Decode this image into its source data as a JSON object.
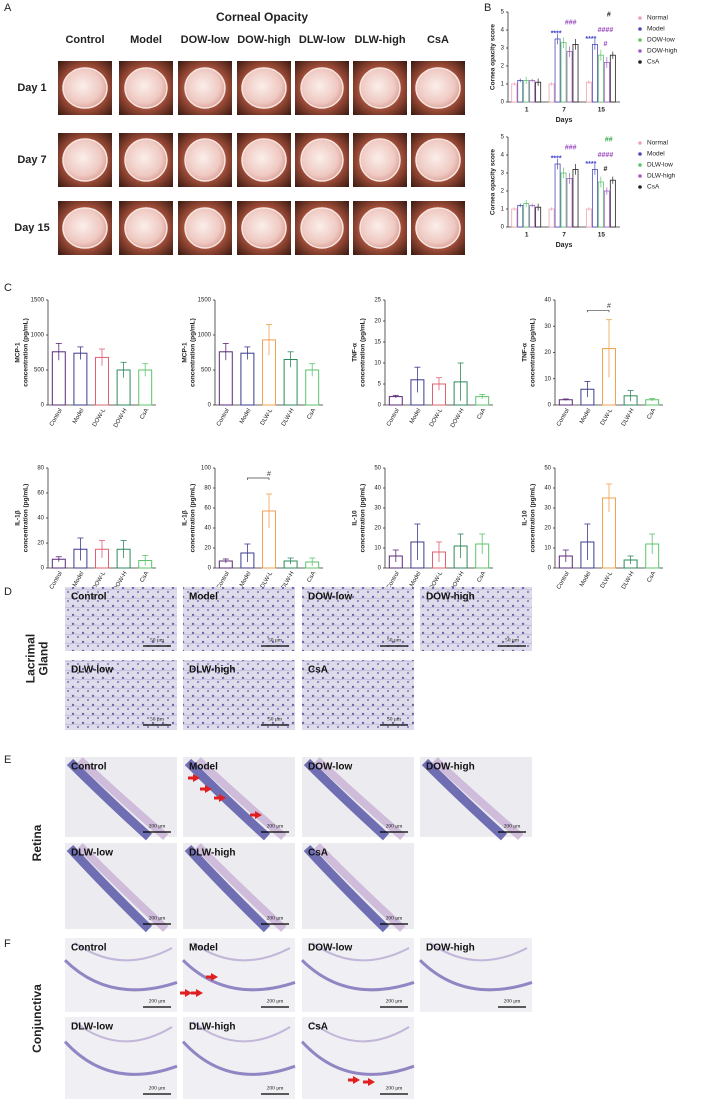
{
  "panel_labels": [
    "A",
    "B",
    "C",
    "D",
    "E",
    "F"
  ],
  "corneal_opacity": {
    "title": "Corneal Opacity",
    "groups": [
      "Control",
      "Model",
      "DOW-low",
      "DOW-high",
      "DLW-low",
      "DLW-high",
      "CsA"
    ],
    "days": [
      "Day 1",
      "Day 7",
      "Day 15"
    ]
  },
  "chart_data": [
    {
      "type": "bar",
      "ylabel": [
        "Cornea opacity score"
      ],
      "xlabel": "Days",
      "categories": [
        "1",
        "7",
        "15"
      ],
      "ylim": [
        0,
        5
      ],
      "yticks": [
        0,
        1,
        2,
        3,
        4,
        5
      ],
      "legend": "right",
      "series": [
        {
          "name": "Normal",
          "color": "#f2a3b0",
          "values": [
            1,
            1,
            1.1
          ],
          "errors": [
            0.1,
            0.1,
            0.1
          ]
        },
        {
          "name": "Model",
          "color": "#4b4bb5",
          "values": [
            1.2,
            3.5,
            3.2
          ],
          "errors": [
            0.1,
            0.3,
            0.3
          ]
        },
        {
          "name": "DOW-low",
          "color": "#5cc46b",
          "values": [
            1.2,
            3.3,
            2.6
          ],
          "errors": [
            0.2,
            0.3,
            0.3
          ]
        },
        {
          "name": "DOW-high",
          "color": "#a45cc8",
          "values": [
            1.2,
            2.8,
            2.2
          ],
          "errors": [
            0.1,
            0.3,
            0.3
          ]
        },
        {
          "name": "CsA",
          "color": "#222222",
          "values": [
            1.1,
            3.2,
            2.6
          ],
          "errors": [
            0.2,
            0.3,
            0.2
          ]
        }
      ],
      "annotations": [
        {
          "text": "****",
          "color": "#3a3ad0"
        },
        {
          "text": "###",
          "color": "#9a4cc0"
        },
        {
          "text": "****",
          "color": "#3a3ad0"
        },
        {
          "text": "#",
          "color": "#9a4cc0"
        },
        {
          "text": "####",
          "color": "#9a4cc0"
        },
        {
          "text": "#",
          "color": "#222222"
        }
      ]
    },
    {
      "type": "bar",
      "ylabel": [
        "Cornea opacity score"
      ],
      "xlabel": "Days",
      "categories": [
        "1",
        "7",
        "15"
      ],
      "ylim": [
        0,
        5
      ],
      "yticks": [
        0,
        1,
        2,
        3,
        4,
        5
      ],
      "legend": "right",
      "series": [
        {
          "name": "Normal",
          "color": "#f2a3b0",
          "values": [
            1,
            1,
            1
          ],
          "errors": [
            0.1,
            0.1,
            0.1
          ]
        },
        {
          "name": "Model",
          "color": "#4b4bb5",
          "values": [
            1.2,
            3.5,
            3.2
          ],
          "errors": [
            0.1,
            0.3,
            0.3
          ]
        },
        {
          "name": "DLW-low",
          "color": "#5cc46b",
          "values": [
            1.3,
            3.0,
            2.5
          ],
          "errors": [
            0.2,
            0.3,
            0.3
          ]
        },
        {
          "name": "DLW-high",
          "color": "#a45cc8",
          "values": [
            1.2,
            2.7,
            2.0
          ],
          "errors": [
            0.1,
            0.3,
            0.2
          ]
        },
        {
          "name": "CsA",
          "color": "#222222",
          "values": [
            1.1,
            3.2,
            2.6
          ],
          "errors": [
            0.2,
            0.3,
            0.2
          ]
        }
      ],
      "annotations": [
        {
          "text": "****",
          "color": "#3a3ad0"
        },
        {
          "text": "###",
          "color": "#9a4cc0"
        },
        {
          "text": "****",
          "color": "#3a3ad0"
        },
        {
          "text": "#",
          "color": "#222222"
        },
        {
          "text": "####",
          "color": "#9a4cc0"
        },
        {
          "text": "##",
          "color": "#3aa84a"
        }
      ]
    },
    {
      "type": "bar",
      "ylabel": [
        "MCP-1",
        "concentration (pg/mL)"
      ],
      "categories": [
        "Control",
        "Model",
        "DOW-L",
        "DOW-H",
        "CsA"
      ],
      "colors": [
        "#5a2a7a",
        "#3b3b8f",
        "#e06070",
        "#2e8a5a",
        "#5cc46b"
      ],
      "values": [
        760,
        740,
        680,
        500,
        500
      ],
      "errors": [
        120,
        90,
        120,
        110,
        90
      ],
      "ylim": [
        0,
        1500
      ],
      "yticks": [
        0,
        500,
        1000,
        1500
      ],
      "annotations": []
    },
    {
      "type": "bar",
      "ylabel": [
        "MCP-1",
        "concentration (pg/mL)"
      ],
      "categories": [
        "Control",
        "Model",
        "DLW-L",
        "DLW-H",
        "CsA"
      ],
      "colors": [
        "#5a2a7a",
        "#3b3b8f",
        "#f0a050",
        "#2e8a5a",
        "#5cc46b"
      ],
      "values": [
        760,
        740,
        930,
        650,
        500
      ],
      "errors": [
        120,
        90,
        220,
        110,
        90
      ],
      "ylim": [
        0,
        1500
      ],
      "yticks": [
        0,
        500,
        1000,
        1500
      ],
      "annotations": []
    },
    {
      "type": "bar",
      "ylabel": [
        "TNF-α",
        "concentration (pg/mL)"
      ],
      "categories": [
        "Control",
        "Model",
        "DOW-L",
        "DOW-H",
        "CsA"
      ],
      "colors": [
        "#5a2a7a",
        "#3b3b8f",
        "#e06070",
        "#2e8a5a",
        "#5cc46b"
      ],
      "values": [
        2,
        6,
        5,
        5.5,
        2
      ],
      "errors": [
        0.3,
        3,
        1.5,
        4.5,
        0.5
      ],
      "ylim": [
        0,
        25
      ],
      "yticks": [
        0,
        5,
        10,
        15,
        20,
        25
      ],
      "annotations": []
    },
    {
      "type": "bar",
      "ylabel": [
        "TNF-α",
        "concentration (pg/mL)"
      ],
      "categories": [
        "Control",
        "Model",
        "DLW-L",
        "DLW-H",
        "CsA"
      ],
      "colors": [
        "#5a2a7a",
        "#3b3b8f",
        "#f0a050",
        "#2e8a5a",
        "#5cc46b"
      ],
      "values": [
        2,
        6,
        21.5,
        3.5,
        2
      ],
      "errors": [
        0.3,
        3,
        11,
        2,
        0.5
      ],
      "ylim": [
        0,
        40
      ],
      "yticks": [
        0,
        10,
        20,
        30,
        40
      ],
      "annotations": [
        {
          "text": "#",
          "color": "#444444"
        }
      ]
    },
    {
      "type": "bar",
      "ylabel": [
        "IL-1β",
        "concentration (pg/mL)"
      ],
      "categories": [
        "Control",
        "Model",
        "DOW-L",
        "DOW-H",
        "CsA"
      ],
      "colors": [
        "#5a2a7a",
        "#3b3b8f",
        "#e06070",
        "#2e8a5a",
        "#5cc46b"
      ],
      "values": [
        7,
        15,
        15,
        15,
        6
      ],
      "errors": [
        2,
        9,
        7,
        7,
        4
      ],
      "ylim": [
        0,
        80
      ],
      "yticks": [
        0,
        20,
        40,
        60,
        80
      ],
      "annotations": []
    },
    {
      "type": "bar",
      "ylabel": [
        "IL-1β",
        "concentration (pg/mL)"
      ],
      "categories": [
        "Control",
        "Model",
        "DLW-L",
        "DLW-H",
        "CsA"
      ],
      "colors": [
        "#5a2a7a",
        "#3b3b8f",
        "#f0a050",
        "#2e8a5a",
        "#5cc46b"
      ],
      "values": [
        7,
        15,
        57,
        7,
        6
      ],
      "errors": [
        2,
        9,
        17,
        3,
        4
      ],
      "ylim": [
        0,
        100
      ],
      "yticks": [
        0,
        20,
        40,
        60,
        80,
        100
      ],
      "annotations": [
        {
          "text": "#",
          "color": "#444444"
        }
      ]
    },
    {
      "type": "bar",
      "ylabel": [
        "IL-10",
        "concentration (pg/mL)"
      ],
      "categories": [
        "Control",
        "Model",
        "DOW-L",
        "DOW-H",
        "CsA"
      ],
      "colors": [
        "#5a2a7a",
        "#3b3b8f",
        "#e06070",
        "#2e8a5a",
        "#5cc46b"
      ],
      "values": [
        6,
        13,
        8,
        11,
        12
      ],
      "errors": [
        3,
        9,
        5,
        6,
        5
      ],
      "ylim": [
        0,
        50
      ],
      "yticks": [
        0,
        10,
        20,
        30,
        40,
        50
      ],
      "annotations": []
    },
    {
      "type": "bar",
      "ylabel": [
        "IL-10",
        "concentration (pg/mL)"
      ],
      "categories": [
        "Control",
        "Model",
        "DLW-L",
        "DLW-H",
        "CsA"
      ],
      "colors": [
        "#5a2a7a",
        "#3b3b8f",
        "#f0a050",
        "#2e8a5a",
        "#5cc46b"
      ],
      "values": [
        6,
        13,
        35,
        4,
        12
      ],
      "errors": [
        3,
        9,
        7,
        2,
        5
      ],
      "ylim": [
        0,
        50
      ],
      "yticks": [
        0,
        10,
        20,
        30,
        40,
        50
      ],
      "annotations": []
    }
  ],
  "histology": [
    {
      "label_lines": [
        "Lacrimal",
        "Gland"
      ],
      "groups": [
        "Control",
        "Model",
        "DOW-low",
        "DOW-high",
        "DLW-low",
        "DLW-high",
        "CsA"
      ],
      "scale_bar": "50 μm"
    },
    {
      "label_lines": [
        "Retina"
      ],
      "groups": [
        "Control",
        "Model",
        "DOW-low",
        "DOW-high",
        "DLW-low",
        "DLW-high",
        "CsA"
      ],
      "scale_bar": "200 μm"
    },
    {
      "label_lines": [
        "Conjunctiva"
      ],
      "groups": [
        "Control",
        "Model",
        "DOW-low",
        "DOW-high",
        "DLW-low",
        "DLW-high",
        "CsA"
      ],
      "scale_bar": "200 μm"
    }
  ]
}
